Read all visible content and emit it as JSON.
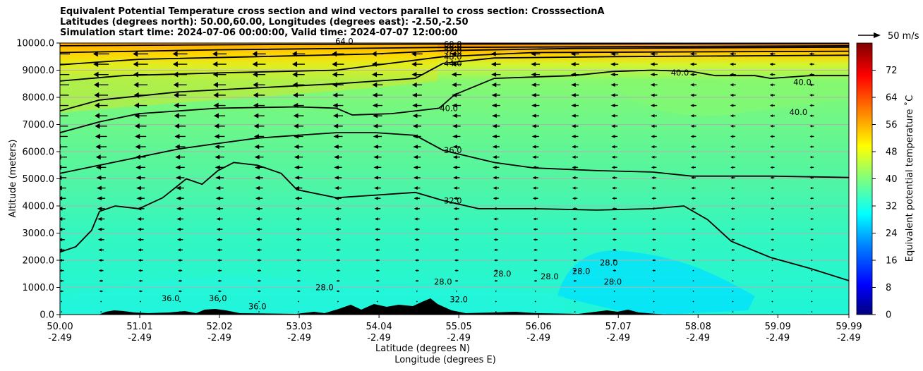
{
  "chart_data": {
    "type": "heatmap",
    "title_lines": [
      "Equivalent Potential Temperature cross section and wind vectors parallel to cross section: CrosssectionA",
      "Latitudes (degrees north): 50.00,60.00, Longitudes (degrees east): -2.50,-2.50",
      "Simulation start time: 2024-07-06 00:00:00, Valid time: 2024-07-07 12:00:00"
    ],
    "xlabel": "Latitude (degrees N)",
    "xlabel2": "Longitude (degrees E)",
    "ylabel": "Altitude (meters)",
    "xlim": [
      50.0,
      59.99
    ],
    "ylim": [
      0,
      10000
    ],
    "x_ticks": [
      {
        "lat": "50.00",
        "lon": "-2.49",
        "v": 50.0
      },
      {
        "lat": "51.01",
        "lon": "-2.49",
        "v": 51.01
      },
      {
        "lat": "52.02",
        "lon": "-2.49",
        "v": 52.02
      },
      {
        "lat": "53.03",
        "lon": "-2.49",
        "v": 53.03
      },
      {
        "lat": "54.04",
        "lon": "-2.49",
        "v": 54.04
      },
      {
        "lat": "55.05",
        "lon": "-2.49",
        "v": 55.05
      },
      {
        "lat": "56.06",
        "lon": "-2.49",
        "v": 56.06
      },
      {
        "lat": "57.07",
        "lon": "-2.49",
        "v": 57.07
      },
      {
        "lat": "58.08",
        "lon": "-2.49",
        "v": 58.08
      },
      {
        "lat": "59.09",
        "lon": "-2.49",
        "v": 59.09
      },
      {
        "lat": "59.99",
        "lon": "-2.49",
        "v": 59.99
      }
    ],
    "y_ticks": [
      {
        "label": "0.0",
        "v": 0
      },
      {
        "label": "1000.0",
        "v": 1000
      },
      {
        "label": "2000.0",
        "v": 2000
      },
      {
        "label": "3000.0",
        "v": 3000
      },
      {
        "label": "4000.0",
        "v": 4000
      },
      {
        "label": "5000.0",
        "v": 5000
      },
      {
        "label": "6000.0",
        "v": 6000
      },
      {
        "label": "7000.0",
        "v": 7000
      },
      {
        "label": "8000.0",
        "v": 8000
      },
      {
        "label": "9000.0",
        "v": 9000
      },
      {
        "label": "10000.0",
        "v": 10000
      }
    ],
    "grid": "horizontal",
    "colorbar": {
      "label": "Equivalent potential temperature ˚C",
      "range": [
        0,
        80
      ],
      "ticks": [
        0,
        8,
        16,
        24,
        32,
        40,
        48,
        56,
        64,
        72
      ],
      "colors": [
        "#00007f",
        "#0000ff",
        "#007fff",
        "#00ffff",
        "#7fff7f",
        "#ffff00",
        "#ff7f00",
        "#ff0000",
        "#7f0000"
      ]
    },
    "quiver_key": {
      "label": "50 m/s",
      "value": 50
    },
    "contours": [
      {
        "level": 32,
        "label": "32.0",
        "points": [
          [
            50.0,
            2300
          ],
          [
            50.2,
            2500
          ],
          [
            50.4,
            3100
          ],
          [
            50.5,
            3800
          ],
          [
            50.7,
            4000
          ],
          [
            51.0,
            3900
          ],
          [
            51.3,
            4300
          ],
          [
            51.6,
            5000
          ],
          [
            51.8,
            4800
          ],
          [
            52.0,
            5300
          ],
          [
            52.2,
            5600
          ],
          [
            52.5,
            5500
          ],
          [
            52.8,
            5200
          ],
          [
            53.0,
            4600
          ],
          [
            53.5,
            4300
          ],
          [
            54.0,
            4400
          ],
          [
            54.5,
            4500
          ],
          [
            54.85,
            4200
          ],
          [
            55.3,
            3900
          ],
          [
            56.0,
            3900
          ],
          [
            56.8,
            3850
          ],
          [
            57.5,
            3900
          ],
          [
            57.9,
            4000
          ],
          [
            58.2,
            3500
          ],
          [
            58.5,
            2700
          ],
          [
            59.0,
            2100
          ],
          [
            59.5,
            1700
          ],
          [
            59.99,
            1250
          ]
        ]
      },
      {
        "level": 36,
        "label": "36.0",
        "points": [
          [
            50.0,
            5200
          ],
          [
            50.5,
            5500
          ],
          [
            51.0,
            5800
          ],
          [
            51.5,
            6100
          ],
          [
            52.0,
            6300
          ],
          [
            52.5,
            6500
          ],
          [
            53.0,
            6600
          ],
          [
            53.5,
            6700
          ],
          [
            54.0,
            6700
          ],
          [
            54.5,
            6600
          ],
          [
            54.85,
            6050
          ],
          [
            55.5,
            5600
          ],
          [
            56.0,
            5400
          ],
          [
            56.8,
            5300
          ],
          [
            57.5,
            5250
          ],
          [
            58.0,
            5100
          ],
          [
            59.0,
            5100
          ],
          [
            59.99,
            5050
          ]
        ]
      },
      {
        "level": 40,
        "label": "40.0",
        "points": [
          [
            50.0,
            6700
          ],
          [
            50.5,
            7100
          ],
          [
            51.0,
            7400
          ],
          [
            52.0,
            7600
          ],
          [
            53.0,
            7650
          ],
          [
            53.5,
            7600
          ],
          [
            53.7,
            7350
          ],
          [
            54.2,
            7400
          ],
          [
            54.8,
            7600
          ],
          [
            55.0,
            8100
          ],
          [
            55.5,
            8700
          ],
          [
            56.5,
            8800
          ],
          [
            57.0,
            8950
          ],
          [
            57.5,
            9000
          ],
          [
            58.0,
            8950
          ],
          [
            58.3,
            8800
          ],
          [
            58.8,
            8800
          ],
          [
            59.0,
            8700
          ],
          [
            59.5,
            8800
          ],
          [
            59.99,
            8800
          ]
        ]
      },
      {
        "level": 44,
        "label": "44.0",
        "points": [
          [
            50.0,
            7500
          ],
          [
            50.5,
            7900
          ],
          [
            51.5,
            8200
          ],
          [
            52.5,
            8350
          ],
          [
            53.5,
            8500
          ],
          [
            54.5,
            8700
          ],
          [
            54.85,
            9250
          ],
          [
            55.5,
            9450
          ],
          [
            57.0,
            9500
          ],
          [
            59.99,
            9550
          ]
        ]
      },
      {
        "level": 48,
        "label": "48.0",
        "points": [
          [
            50.0,
            8600
          ],
          [
            50.8,
            8800
          ],
          [
            52.0,
            8900
          ],
          [
            53.5,
            9000
          ],
          [
            54.85,
            9500
          ],
          [
            56.0,
            9650
          ],
          [
            59.99,
            9700
          ]
        ]
      },
      {
        "level": 52,
        "label": "52.0",
        "points": [
          [
            50.0,
            9200
          ],
          [
            51.0,
            9400
          ],
          [
            52.5,
            9500
          ],
          [
            54.0,
            9600
          ],
          [
            54.85,
            9720
          ],
          [
            56.5,
            9800
          ],
          [
            59.99,
            9850
          ]
        ]
      },
      {
        "level": 56,
        "label": "56.0",
        "points": [
          [
            50.0,
            9650
          ],
          [
            52.0,
            9750
          ],
          [
            54.85,
            9840
          ],
          [
            59.99,
            9900
          ]
        ]
      },
      {
        "level": 60,
        "label": "60.0",
        "points": [
          [
            50.0,
            9900
          ],
          [
            53.0,
            9950
          ],
          [
            54.85,
            9960
          ],
          [
            59.99,
            9980
          ]
        ]
      }
    ],
    "contour_labels_extra": [
      {
        "text": "64.0",
        "x": 53.6,
        "y": 9960
      },
      {
        "text": "40.0",
        "x": 57.85,
        "y": 8800
      },
      {
        "text": "40.0",
        "x": 59.35,
        "y": 7350
      },
      {
        "text": "40.0",
        "x": 59.4,
        "y": 8450
      },
      {
        "text": "28.0",
        "x": 53.35,
        "y": 900
      },
      {
        "text": "28.0",
        "x": 54.85,
        "y": 1100
      },
      {
        "text": "28.0",
        "x": 55.6,
        "y": 1400
      },
      {
        "text": "28.0",
        "x": 56.2,
        "y": 1300
      },
      {
        "text": "28.0",
        "x": 56.6,
        "y": 1500
      },
      {
        "text": "28.0",
        "x": 56.95,
        "y": 1800
      },
      {
        "text": "28.0",
        "x": 57.0,
        "y": 1100
      },
      {
        "text": "36.0",
        "x": 51.4,
        "y": 500
      },
      {
        "text": "36.0",
        "x": 52.0,
        "y": 500
      },
      {
        "text": "36.0",
        "x": 52.5,
        "y": 200
      },
      {
        "text": "32.0",
        "x": 55.05,
        "y": 450
      }
    ],
    "wind_note": "westward (arrows pointing left) wind in upper levels, weakening with height decrease"
  }
}
